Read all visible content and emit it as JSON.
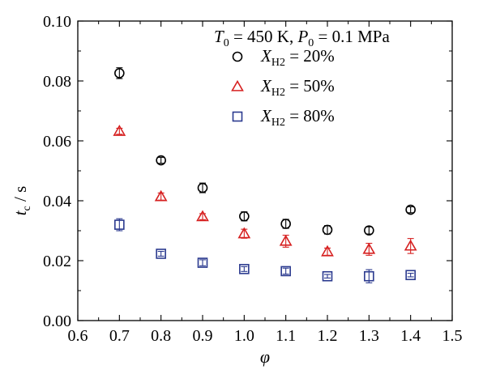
{
  "chart_data": {
    "type": "scatter",
    "xlabel": "φ",
    "ylabel": {
      "var": "t",
      "sub": "c",
      "unit": " / s"
    },
    "xlim": [
      0.6,
      1.5
    ],
    "ylim": [
      0.0,
      0.1
    ],
    "xticks": [
      "0.6",
      "0.7",
      "0.8",
      "0.9",
      "1.0",
      "1.1",
      "1.2",
      "1.3",
      "1.4",
      "1.5"
    ],
    "yticks": [
      "0.00",
      "0.02",
      "0.04",
      "0.06",
      "0.08",
      "0.10"
    ],
    "grid": false,
    "legend_placement": "top-right",
    "condition": {
      "t_var": "T",
      "t_sub": "0",
      "t_val": " = 450 K,  ",
      "p_var": "P",
      "p_sub": "0",
      "p_val": " = 0.1 MPa"
    },
    "series": [
      {
        "name": "X_H2 = 20%",
        "label_var": "X",
        "label_sub": "H2",
        "label_val": " = 20%",
        "marker": "circle",
        "color": "#000000",
        "x": [
          0.7,
          0.8,
          0.9,
          1.0,
          1.1,
          1.2,
          1.3,
          1.4
        ],
        "y": [
          0.0826,
          0.0535,
          0.0443,
          0.0348,
          0.0323,
          0.0303,
          0.0301,
          0.037
        ],
        "err": [
          0.0018,
          0.001,
          0.0016,
          0.0015,
          0.0015,
          0.0014,
          0.0012,
          0.001
        ]
      },
      {
        "name": "X_H2 = 50%",
        "label_var": "X",
        "label_sub": "H2",
        "label_val": " = 50%",
        "marker": "triangle",
        "color": "#d62020",
        "x": [
          0.7,
          0.8,
          0.9,
          1.0,
          1.1,
          1.2,
          1.3,
          1.4
        ],
        "y": [
          0.0632,
          0.0414,
          0.0347,
          0.029,
          0.0265,
          0.023,
          0.0238,
          0.0249
        ],
        "err": [
          0.001,
          0.0012,
          0.001,
          0.0015,
          0.002,
          0.0012,
          0.002,
          0.0025
        ]
      },
      {
        "name": "X_H2 = 80%",
        "label_var": "X",
        "label_sub": "H2",
        "label_val": " = 80%",
        "marker": "square",
        "color": "#2b3a8f",
        "x": [
          0.7,
          0.8,
          0.9,
          1.0,
          1.1,
          1.2,
          1.3,
          1.4
        ],
        "y": [
          0.032,
          0.0223,
          0.0193,
          0.0172,
          0.0165,
          0.0148,
          0.0148,
          0.0152
        ],
        "err": [
          0.002,
          0.0008,
          0.001,
          0.0008,
          0.001,
          0.0006,
          0.0022,
          0.0006
        ]
      }
    ]
  }
}
